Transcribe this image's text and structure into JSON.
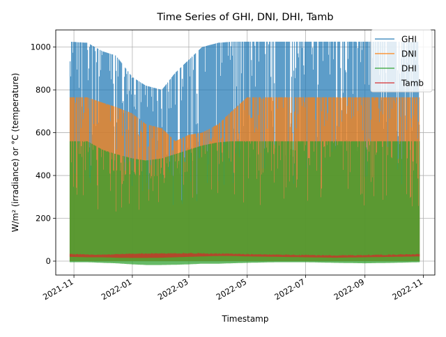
{
  "chart_data": {
    "type": "line",
    "title": "Time Series of GHI, DNI, DHI, Tamb",
    "xlabel": "Timestamp",
    "ylabel": "W/m² (irradiance) or °C (temperature)",
    "x_range": [
      "2021-10-13",
      "2022-11-13"
    ],
    "ylim": [
      -65,
      1080
    ],
    "x_ticks": [
      {
        "date": "2021-11-01",
        "label": "2021-11"
      },
      {
        "date": "2022-01-01",
        "label": "2022-01"
      },
      {
        "date": "2022-03-01",
        "label": "2022-03"
      },
      {
        "date": "2022-05-01",
        "label": "2022-05"
      },
      {
        "date": "2022-07-01",
        "label": "2022-07"
      },
      {
        "date": "2022-09-01",
        "label": "2022-09"
      },
      {
        "date": "2022-11-01",
        "label": "2022-11"
      }
    ],
    "y_ticks": [
      0,
      200,
      400,
      600,
      800,
      1000
    ],
    "grid": true,
    "legend_position": "top-right",
    "x_sample_dates": [
      "2021-10-28",
      "2021-11-15",
      "2021-12-01",
      "2021-12-15",
      "2022-01-01",
      "2022-01-15",
      "2022-02-01",
      "2022-02-15",
      "2022-03-01",
      "2022-03-15",
      "2022-04-01",
      "2022-04-15",
      "2022-05-01",
      "2022-06-01",
      "2022-07-01",
      "2022-08-01",
      "2022-09-01",
      "2022-10-01",
      "2022-10-28"
    ],
    "series": [
      {
        "name": "GHI",
        "color": "#1f77b4",
        "daily_max": [
          1025,
          1020,
          980,
          960,
          860,
          820,
          800,
          880,
          940,
          1000,
          1020,
          1025,
          1025,
          1025,
          1025,
          1025,
          1025,
          1025,
          1025
        ],
        "daily_min": [
          0,
          0,
          0,
          0,
          0,
          0,
          0,
          0,
          0,
          0,
          0,
          0,
          0,
          0,
          0,
          0,
          0,
          0,
          0
        ]
      },
      {
        "name": "DNI",
        "color": "#ff7f0e",
        "daily_max": [
          765,
          765,
          740,
          720,
          690,
          640,
          620,
          560,
          590,
          600,
          640,
          700,
          765,
          765,
          765,
          765,
          765,
          765,
          765
        ],
        "daily_min": [
          0,
          0,
          0,
          0,
          0,
          0,
          0,
          0,
          0,
          0,
          0,
          0,
          0,
          0,
          0,
          0,
          0,
          0,
          0
        ]
      },
      {
        "name": "DHI",
        "color": "#2ca02c",
        "daily_max": [
          560,
          560,
          520,
          500,
          480,
          470,
          480,
          500,
          520,
          540,
          555,
          560,
          560,
          560,
          560,
          560,
          560,
          560,
          560
        ],
        "daily_min": [
          -5,
          -5,
          -8,
          -10,
          -15,
          -18,
          -18,
          -17,
          -15,
          -12,
          -12,
          -10,
          -8,
          -5,
          -5,
          -8,
          -10,
          -8,
          -5
        ]
      },
      {
        "name": "Tamb",
        "color": "#d62728",
        "daily_max": [
          35,
          32,
          32,
          34,
          36,
          37,
          38,
          38,
          39,
          38,
          37,
          36,
          34,
          32,
          30,
          28,
          30,
          32,
          34
        ],
        "daily_min": [
          20,
          18,
          18,
          16,
          15,
          15,
          16,
          18,
          20,
          22,
          24,
          24,
          22,
          20,
          18,
          16,
          18,
          20,
          22
        ]
      }
    ]
  }
}
